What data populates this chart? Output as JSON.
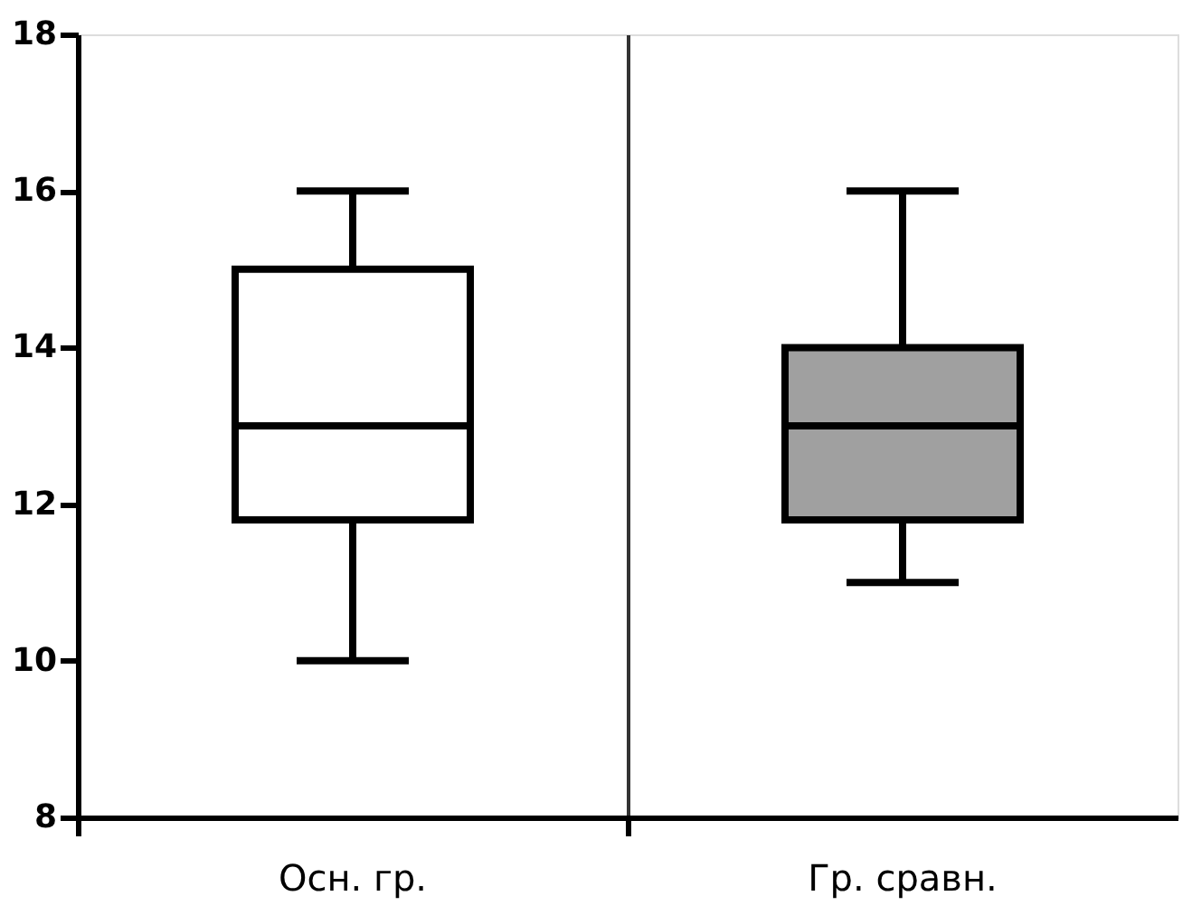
{
  "chart_data": {
    "type": "box",
    "categories": [
      "Осн. гр.",
      "Гр. сравн."
    ],
    "boxes": [
      {
        "low": 10,
        "q1": 11.8,
        "median": 13,
        "q3": 15,
        "high": 16
      },
      {
        "low": 11,
        "q1": 11.8,
        "median": 13,
        "q3": 14,
        "high": 16
      }
    ],
    "colors": [
      "#ffffff",
      "#a0a0a0"
    ],
    "ylim": [
      8,
      18
    ],
    "yticks": [
      8,
      10,
      12,
      14,
      16,
      18
    ],
    "grid": "x"
  }
}
